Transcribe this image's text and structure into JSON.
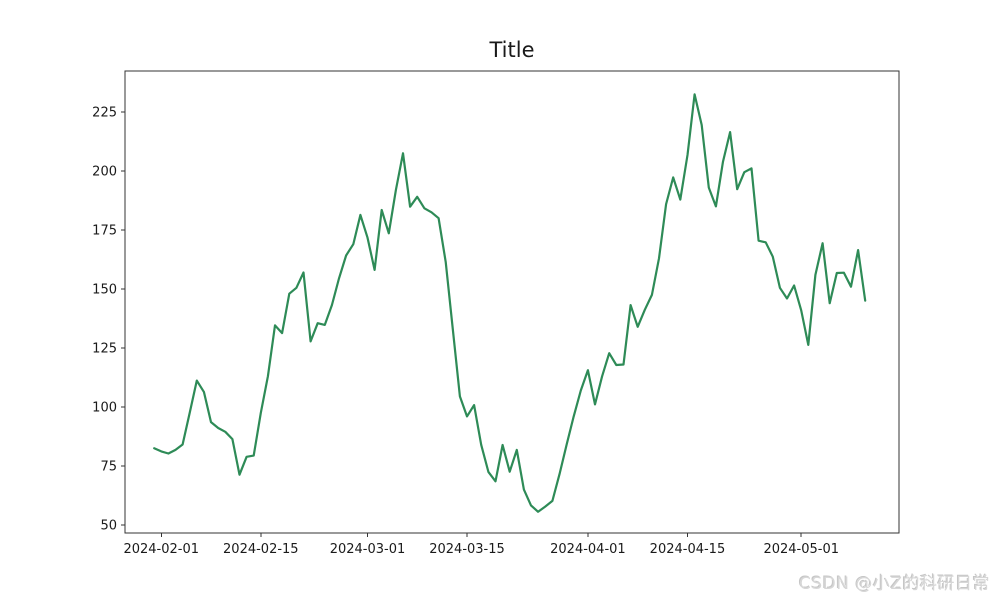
{
  "watermark": {
    "text": "CSDN @小Z的科研日常",
    "color": "#d7d7d7"
  },
  "chart_data": {
    "type": "line",
    "title": "Title",
    "xlabel": "",
    "ylabel": "",
    "grid": false,
    "legend": null,
    "colors": {
      "line": "#2e8b57",
      "spine": "#333333",
      "text": "#1a1a1a",
      "background": "#ffffff"
    },
    "line_width": 2.2,
    "ylim": [
      46.6,
      242.4
    ],
    "xlim_index": [
      -4.1,
      104.75
    ],
    "y_ticks": [
      50,
      75,
      100,
      125,
      150,
      175,
      200,
      225
    ],
    "x_ticks": [
      {
        "label": "2024-02-01",
        "index": 1
      },
      {
        "label": "2024-02-15",
        "index": 15
      },
      {
        "label": "2024-03-01",
        "index": 30
      },
      {
        "label": "2024-03-15",
        "index": 44
      },
      {
        "label": "2024-04-01",
        "index": 61
      },
      {
        "label": "2024-04-15",
        "index": 75
      },
      {
        "label": "2024-05-01",
        "index": 91
      }
    ],
    "x": [
      "2024-01-31",
      "2024-02-01",
      "2024-02-02",
      "2024-02-03",
      "2024-02-04",
      "2024-02-05",
      "2024-02-06",
      "2024-02-07",
      "2024-02-08",
      "2024-02-09",
      "2024-02-10",
      "2024-02-11",
      "2024-02-12",
      "2024-02-13",
      "2024-02-14",
      "2024-02-15",
      "2024-02-16",
      "2024-02-17",
      "2024-02-18",
      "2024-02-19",
      "2024-02-20",
      "2024-02-21",
      "2024-02-22",
      "2024-02-23",
      "2024-02-24",
      "2024-02-25",
      "2024-02-26",
      "2024-02-27",
      "2024-02-28",
      "2024-02-29",
      "2024-03-01",
      "2024-03-02",
      "2024-03-03",
      "2024-03-04",
      "2024-03-05",
      "2024-03-06",
      "2024-03-07",
      "2024-03-08",
      "2024-03-09",
      "2024-03-10",
      "2024-03-11",
      "2024-03-12",
      "2024-03-13",
      "2024-03-14",
      "2024-03-15",
      "2024-03-16",
      "2024-03-17",
      "2024-03-18",
      "2024-03-19",
      "2024-03-20",
      "2024-03-21",
      "2024-03-22",
      "2024-03-23",
      "2024-03-24",
      "2024-03-25",
      "2024-03-26",
      "2024-03-27",
      "2024-03-28",
      "2024-03-29",
      "2024-03-30",
      "2024-03-31",
      "2024-04-01",
      "2024-04-02",
      "2024-04-03",
      "2024-04-04",
      "2024-04-05",
      "2024-04-06",
      "2024-04-07",
      "2024-04-08",
      "2024-04-09",
      "2024-04-10",
      "2024-04-11",
      "2024-04-12",
      "2024-04-13",
      "2024-04-14",
      "2024-04-15",
      "2024-04-16",
      "2024-04-17",
      "2024-04-18",
      "2024-04-19",
      "2024-04-20",
      "2024-04-21",
      "2024-04-22",
      "2024-04-23",
      "2024-04-24",
      "2024-04-25",
      "2024-04-26",
      "2024-04-27",
      "2024-04-28",
      "2024-04-29",
      "2024-04-30",
      "2024-05-01",
      "2024-05-02",
      "2024-05-03",
      "2024-05-04",
      "2024-05-05",
      "2024-05-06",
      "2024-05-07",
      "2024-05-08",
      "2024-05-09",
      "2024-05-10"
    ],
    "values": [
      82.5,
      81.2,
      80.3,
      81.8,
      84.1,
      97.5,
      111.2,
      106.4,
      93.6,
      91.1,
      89.5,
      86.4,
      71.3,
      78.9,
      79.4,
      97.5,
      113.0,
      134.6,
      131.3,
      148.0,
      150.5,
      157.0,
      127.8,
      135.5,
      134.8,
      143.2,
      154.5,
      164.2,
      169.0,
      181.4,
      171.8,
      158.1,
      183.5,
      173.6,
      192.0,
      207.5,
      184.9,
      189.1,
      184.2,
      182.5,
      180.0,
      161.5,
      133.0,
      104.5,
      96.0,
      100.8,
      84.0,
      72.5,
      68.5,
      83.9,
      72.6,
      81.8,
      65.0,
      58.3,
      55.6,
      57.8,
      60.2,
      71.5,
      84.0,
      96.0,
      107.0,
      115.6,
      101.1,
      113.0,
      122.8,
      117.8,
      118.0,
      143.2,
      134.0,
      141.2,
      147.5,
      163.0,
      186.0,
      197.3,
      187.9,
      206.8,
      232.5,
      219.5,
      193.0,
      185.0,
      204.0,
      216.5,
      192.3,
      199.5,
      201.1,
      170.5,
      169.8,
      163.7,
      150.5,
      146.0,
      151.5,
      141.0,
      126.3,
      156.0,
      169.4,
      144.0,
      156.8,
      156.9,
      151.0,
      166.5,
      145.1
    ]
  }
}
